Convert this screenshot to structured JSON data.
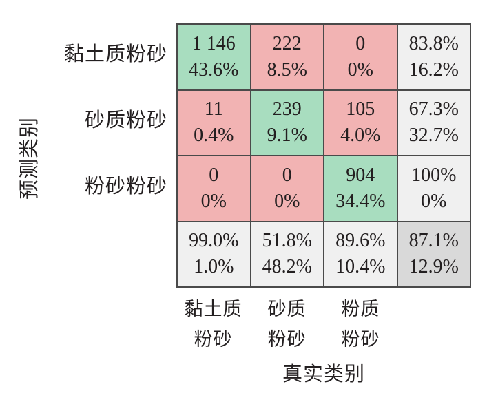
{
  "chart_data": {
    "type": "heatmap",
    "xlabel": "真实类别",
    "ylabel": "预测类别",
    "row_labels": [
      "黏土质粉砂",
      "砂质粉砂",
      "粉砂粉砂"
    ],
    "col_labels": [
      [
        "黏土质",
        "粉砂"
      ],
      [
        "砂质",
        "粉砂"
      ],
      [
        "粉质",
        "粉砂"
      ]
    ],
    "cells": [
      [
        {
          "count": "1 146",
          "percent": "43.6%",
          "status": "correct"
        },
        {
          "count": "222",
          "percent": "8.5%",
          "status": "wrong"
        },
        {
          "count": "0",
          "percent": "0%",
          "status": "wrong"
        },
        {
          "count": "83.8%",
          "percent": "16.2%",
          "status": "summary"
        }
      ],
      [
        {
          "count": "11",
          "percent": "0.4%",
          "status": "wrong"
        },
        {
          "count": "239",
          "percent": "9.1%",
          "status": "correct"
        },
        {
          "count": "105",
          "percent": "4.0%",
          "status": "wrong"
        },
        {
          "count": "67.3%",
          "percent": "32.7%",
          "status": "summary"
        }
      ],
      [
        {
          "count": "0",
          "percent": "0%",
          "status": "wrong"
        },
        {
          "count": "0",
          "percent": "0%",
          "status": "wrong"
        },
        {
          "count": "904",
          "percent": "34.4%",
          "status": "correct"
        },
        {
          "count": "100%",
          "percent": "0%",
          "status": "summary"
        }
      ],
      [
        {
          "count": "99.0%",
          "percent": "1.0%",
          "status": "summary"
        },
        {
          "count": "51.8%",
          "percent": "48.2%",
          "status": "summary"
        },
        {
          "count": "89.6%",
          "percent": "10.4%",
          "status": "summary"
        },
        {
          "count": "87.1%",
          "percent": "12.9%",
          "status": "overall"
        }
      ]
    ],
    "colors": {
      "correct": "#a8ddbf",
      "wrong": "#f2b3b3",
      "summary": "#f0f0f0",
      "overall": "#d9d9d9"
    }
  }
}
